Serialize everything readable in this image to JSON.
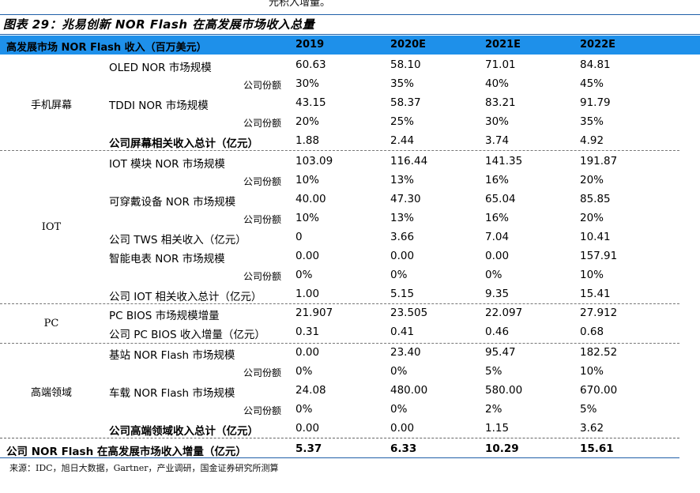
{
  "page": {
    "cut_text": "元积入增量。",
    "title": "图表 29：兆易创新 NOR Flash 在高发展市场收入总量",
    "source": "来源：IDC，旭日大数据，Gartner，产业调研，国金证券研究所测算"
  },
  "header": {
    "label": "高发展市场 NOR Flash 收入（百万美元）",
    "years": [
      "2019",
      "2020E",
      "2021E",
      "2022E"
    ]
  },
  "categories": [
    "手机屏幕",
    "IOT",
    "PC",
    "高端领域"
  ],
  "rows": [
    {
      "label": "OLED NOR 市场规模",
      "values": [
        "60.63",
        "58.10",
        "71.01",
        "84.81"
      ]
    },
    {
      "label": "公司份额",
      "values": [
        "30%",
        "35%",
        "40%",
        "45%"
      ]
    },
    {
      "label": "TDDI NOR 市场规模",
      "values": [
        "43.15",
        "58.37",
        "83.21",
        "91.79"
      ]
    },
    {
      "label": "公司份额",
      "values": [
        "20%",
        "25%",
        "30%",
        "35%"
      ]
    },
    {
      "label": "公司屏幕相关收入总计（亿元）",
      "values": [
        "1.88",
        "2.44",
        "3.74",
        "4.92"
      ]
    },
    {
      "label": "IOT 模块 NOR 市场规模",
      "values": [
        "103.09",
        "116.44",
        "141.35",
        "191.87"
      ]
    },
    {
      "label": "公司份额",
      "values": [
        "10%",
        "13%",
        "16%",
        "20%"
      ]
    },
    {
      "label": "可穿戴设备 NOR 市场规模",
      "values": [
        "40.00",
        "47.30",
        "65.04",
        "85.85"
      ]
    },
    {
      "label": "公司份额",
      "values": [
        "10%",
        "13%",
        "16%",
        "20%"
      ]
    },
    {
      "label": "公司 TWS 相关收入（亿元）",
      "values": [
        "0",
        "3.66",
        "7.04",
        "10.41"
      ]
    },
    {
      "label": "智能电表 NOR 市场规模",
      "values": [
        "0.00",
        "0.00",
        "0.00",
        "157.91"
      ]
    },
    {
      "label": "公司份额",
      "values": [
        "0%",
        "0%",
        "0%",
        "10%"
      ]
    },
    {
      "label": "公司 IOT 相关收入总计（亿元）",
      "values": [
        "1.00",
        "5.15",
        "9.35",
        "15.41"
      ]
    },
    {
      "label": "PC BIOS 市场规模增量",
      "values": [
        "21.907",
        "23.505",
        "22.097",
        "27.912"
      ]
    },
    {
      "label": "公司 PC BIOS 收入增量（亿元）",
      "values": [
        "0.31",
        "0.41",
        "0.46",
        "0.68"
      ]
    },
    {
      "label": "基站 NOR Flash 市场规模",
      "values": [
        "0.00",
        "23.40",
        "95.47",
        "182.52"
      ]
    },
    {
      "label": "公司份额",
      "values": [
        "0%",
        "0%",
        "5%",
        "10%"
      ]
    },
    {
      "label": "车载 NOR Flash 市场规模",
      "values": [
        "24.08",
        "480.00",
        "580.00",
        "670.00"
      ]
    },
    {
      "label": "公司份额",
      "values": [
        "0%",
        "0%",
        "2%",
        "5%"
      ]
    },
    {
      "label": "公司高端领域收入总计（亿元）",
      "values": [
        "0.00",
        "0.00",
        "1.15",
        "3.62"
      ]
    }
  ],
  "total": {
    "label": "公司 NOR Flash 在高发展市场收入增量（亿元）",
    "values": [
      "5.37",
      "6.33",
      "10.29",
      "15.61"
    ]
  }
}
